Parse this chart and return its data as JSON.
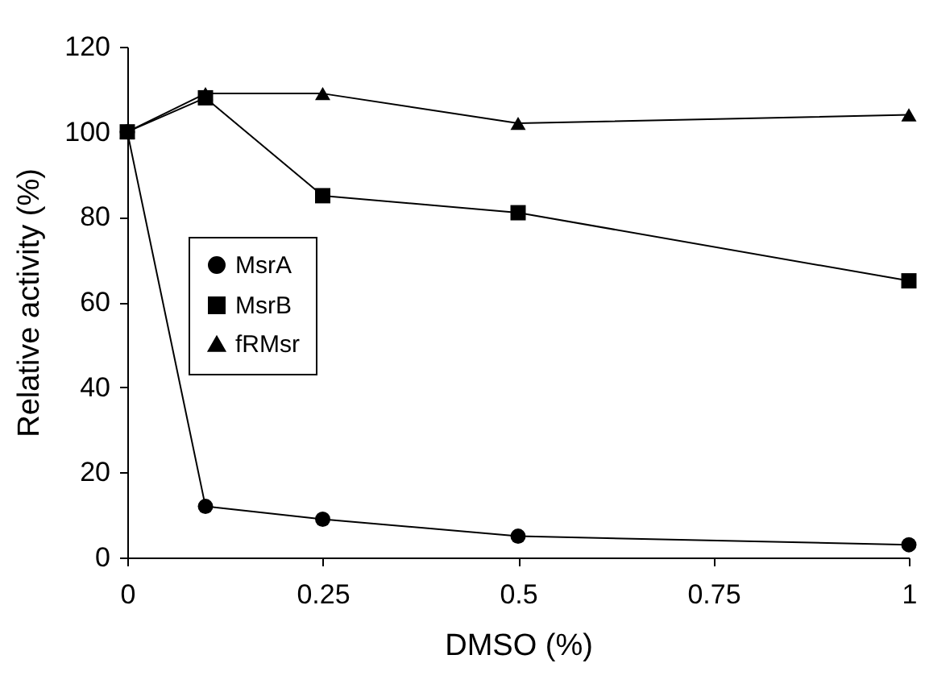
{
  "chart_data": {
    "type": "line",
    "xlabel": "DMSO (%)",
    "ylabel": "Relative activity (%)",
    "x": [
      0,
      0.1,
      0.25,
      0.5,
      1
    ],
    "xlim": [
      0,
      1
    ],
    "xticks": [
      0,
      0.25,
      0.5,
      0.75,
      1
    ],
    "ylim": [
      0,
      120
    ],
    "yticks": [
      0,
      20,
      40,
      60,
      80,
      100,
      120
    ],
    "grid": false,
    "legend": "left",
    "line_style": "solid",
    "series": [
      {
        "name": "MsrA",
        "color": "#000000",
        "marker": "circle",
        "values": [
          100,
          12,
          9,
          5,
          3
        ]
      },
      {
        "name": "MsrB",
        "color": "#000000",
        "marker": "square",
        "values": [
          100,
          108,
          85,
          81,
          65
        ]
      },
      {
        "name": "fRMsr",
        "color": "#000000",
        "marker": "triangle",
        "values": [
          100,
          109,
          109,
          102,
          104
        ]
      }
    ]
  }
}
